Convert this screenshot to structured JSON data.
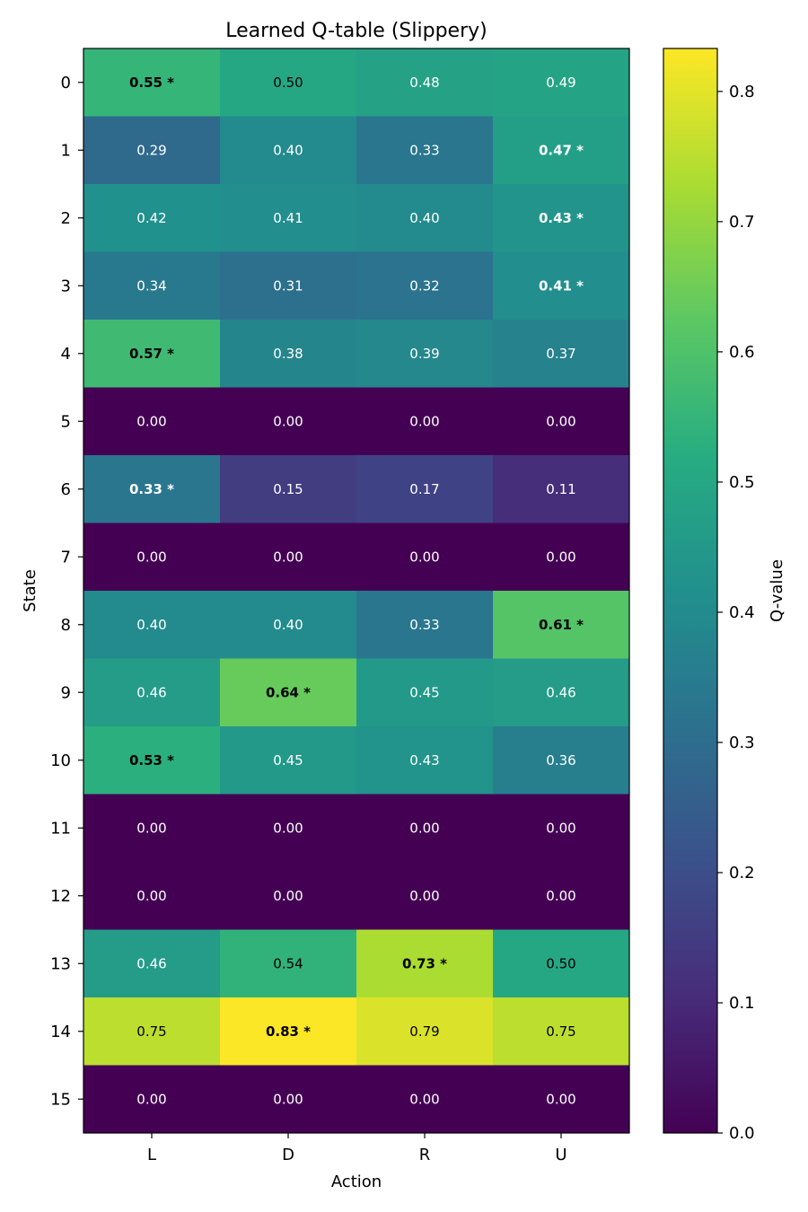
{
  "chart_data": {
    "type": "heatmap",
    "title": "Learned Q-table (Slippery)",
    "xlabel": "Action",
    "ylabel": "State",
    "x_categories": [
      "L",
      "D",
      "R",
      "U"
    ],
    "y_categories": [
      "0",
      "1",
      "2",
      "3",
      "4",
      "5",
      "6",
      "7",
      "8",
      "9",
      "10",
      "11",
      "12",
      "13",
      "14",
      "15"
    ],
    "values": [
      [
        0.55,
        0.5,
        0.48,
        0.49
      ],
      [
        0.29,
        0.4,
        0.33,
        0.47
      ],
      [
        0.42,
        0.41,
        0.4,
        0.43
      ],
      [
        0.34,
        0.31,
        0.32,
        0.41
      ],
      [
        0.57,
        0.38,
        0.39,
        0.37
      ],
      [
        0.0,
        0.0,
        0.0,
        0.0
      ],
      [
        0.33,
        0.15,
        0.17,
        0.11
      ],
      [
        0.0,
        0.0,
        0.0,
        0.0
      ],
      [
        0.4,
        0.4,
        0.33,
        0.61
      ],
      [
        0.46,
        0.64,
        0.45,
        0.46
      ],
      [
        0.53,
        0.45,
        0.43,
        0.36
      ],
      [
        0.0,
        0.0,
        0.0,
        0.0
      ],
      [
        0.0,
        0.0,
        0.0,
        0.0
      ],
      [
        0.46,
        0.54,
        0.73,
        0.5
      ],
      [
        0.75,
        0.83,
        0.79,
        0.75
      ],
      [
        0.0,
        0.0,
        0.0,
        0.0
      ]
    ],
    "best_action_index": [
      0,
      3,
      3,
      3,
      0,
      null,
      0,
      null,
      3,
      1,
      0,
      null,
      null,
      2,
      1,
      null
    ],
    "best_marker": "*",
    "value_format_decimals": 2,
    "colorscale": "viridis",
    "colorbar": {
      "label": "Q-value",
      "range": [
        0.0,
        0.833
      ],
      "ticks": [
        "0.0",
        "0.1",
        "0.2",
        "0.3",
        "0.4",
        "0.5",
        "0.6",
        "0.7",
        "0.8"
      ]
    },
    "grid": false
  }
}
